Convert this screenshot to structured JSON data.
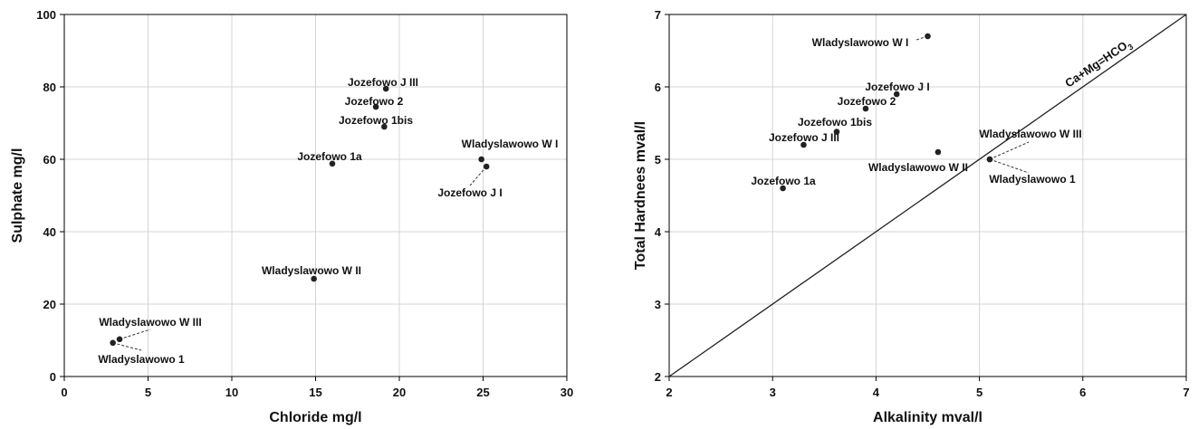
{
  "chart_data": [
    {
      "type": "scatter",
      "title": "",
      "xlabel": "Chloride mg/l",
      "ylabel": "Sulphate mg/l",
      "xlim": [
        0,
        30
      ],
      "ylim": [
        0,
        100
      ],
      "xticks": [
        0,
        5,
        10,
        15,
        20,
        25,
        30
      ],
      "yticks": [
        0,
        20,
        40,
        60,
        80,
        100
      ],
      "grid": true,
      "points": [
        {
          "label": "Jozefowo J III",
          "x": 19.2,
          "y": 79.5
        },
        {
          "label": "Jozefowo 2",
          "x": 18.6,
          "y": 74.5
        },
        {
          "label": "Jozefowo 1bis",
          "x": 19.1,
          "y": 69
        },
        {
          "label": "Jozefowo 1a",
          "x": 16.0,
          "y": 58.8
        },
        {
          "label": "Wladyslawowo W I",
          "x": 24.9,
          "y": 60
        },
        {
          "label": "Jozefowo J I",
          "x": 25.2,
          "y": 58
        },
        {
          "label": "Wladyslawowo W II",
          "x": 14.9,
          "y": 27
        },
        {
          "label": "Wladyslawowo W III",
          "x": 3.3,
          "y": 10.3
        },
        {
          "label": "Wladyslawowo 1",
          "x": 2.9,
          "y": 9.3
        }
      ]
    },
    {
      "type": "scatter",
      "title": "",
      "xlabel": "Alkalinity mval/l",
      "ylabel": "Total Hardnees mval/l",
      "xlim": [
        2,
        7
      ],
      "ylim": [
        2,
        7
      ],
      "xticks": [
        2,
        3,
        4,
        5,
        6,
        7
      ],
      "yticks": [
        2,
        3,
        4,
        5,
        6,
        7
      ],
      "grid": true,
      "reference_line": {
        "label_main": "Ca+Mg=HCO",
        "label_sub": "3",
        "from": [
          2,
          2
        ],
        "to": [
          7,
          7
        ]
      },
      "points": [
        {
          "label": "Wladyslawowo W I",
          "x": 4.5,
          "y": 6.7
        },
        {
          "label": "Jozefowo J I",
          "x": 4.2,
          "y": 5.9
        },
        {
          "label": "Jozefowo 2",
          "x": 3.9,
          "y": 5.7
        },
        {
          "label": "Jozefowo 1bis",
          "x": 3.62,
          "y": 5.38
        },
        {
          "label": "Jozefowo J III",
          "x": 3.3,
          "y": 5.2
        },
        {
          "label": "Wladyslawowo W II",
          "x": 4.6,
          "y": 5.1
        },
        {
          "label": "Wladyslawowo W III",
          "x": 5.1,
          "y": 5.0
        },
        {
          "label": "Wladyslawowo 1",
          "x": 5.1,
          "y": 5.0
        },
        {
          "label": "Jozefowo 1a",
          "x": 3.1,
          "y": 4.6
        }
      ]
    }
  ]
}
